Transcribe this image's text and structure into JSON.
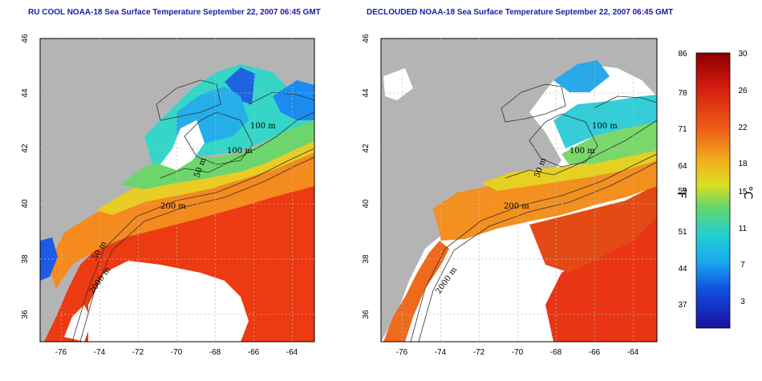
{
  "titles": {
    "left": "RU COOL NOAA-18 Sea Surface Temperature September 22, 2007 06:45 GMT",
    "right": "DECLOUDED NOAA-18 Sea Surface Temperature September 22, 2007 06:45 GMT"
  },
  "axes": {
    "x_ticks": [
      "-76",
      "-74",
      "-72",
      "-70",
      "-68",
      "-66",
      "-64"
    ],
    "y_ticks": [
      "46",
      "44",
      "42",
      "40",
      "38",
      "36"
    ]
  },
  "contour_labels": {
    "left": [
      "100 m",
      "100 m",
      "50 m",
      "200 m",
      "50 m",
      "2000 m"
    ],
    "right": [
      "100 m",
      "100 m",
      "50 m",
      "200 m",
      "2000 m"
    ]
  },
  "colorbar": {
    "f_ticks": [
      "86",
      "78",
      "71",
      "64",
      "59",
      "51",
      "44",
      "37"
    ],
    "c_ticks": [
      "30",
      "26",
      "22",
      "18",
      "15",
      "11",
      "7",
      "3"
    ],
    "f_unit": "°F",
    "c_unit": "°C"
  },
  "colors": {
    "land": "#b4b4b4",
    "cloud_mask": "#ffffff",
    "title": "#1a1aa6"
  }
}
